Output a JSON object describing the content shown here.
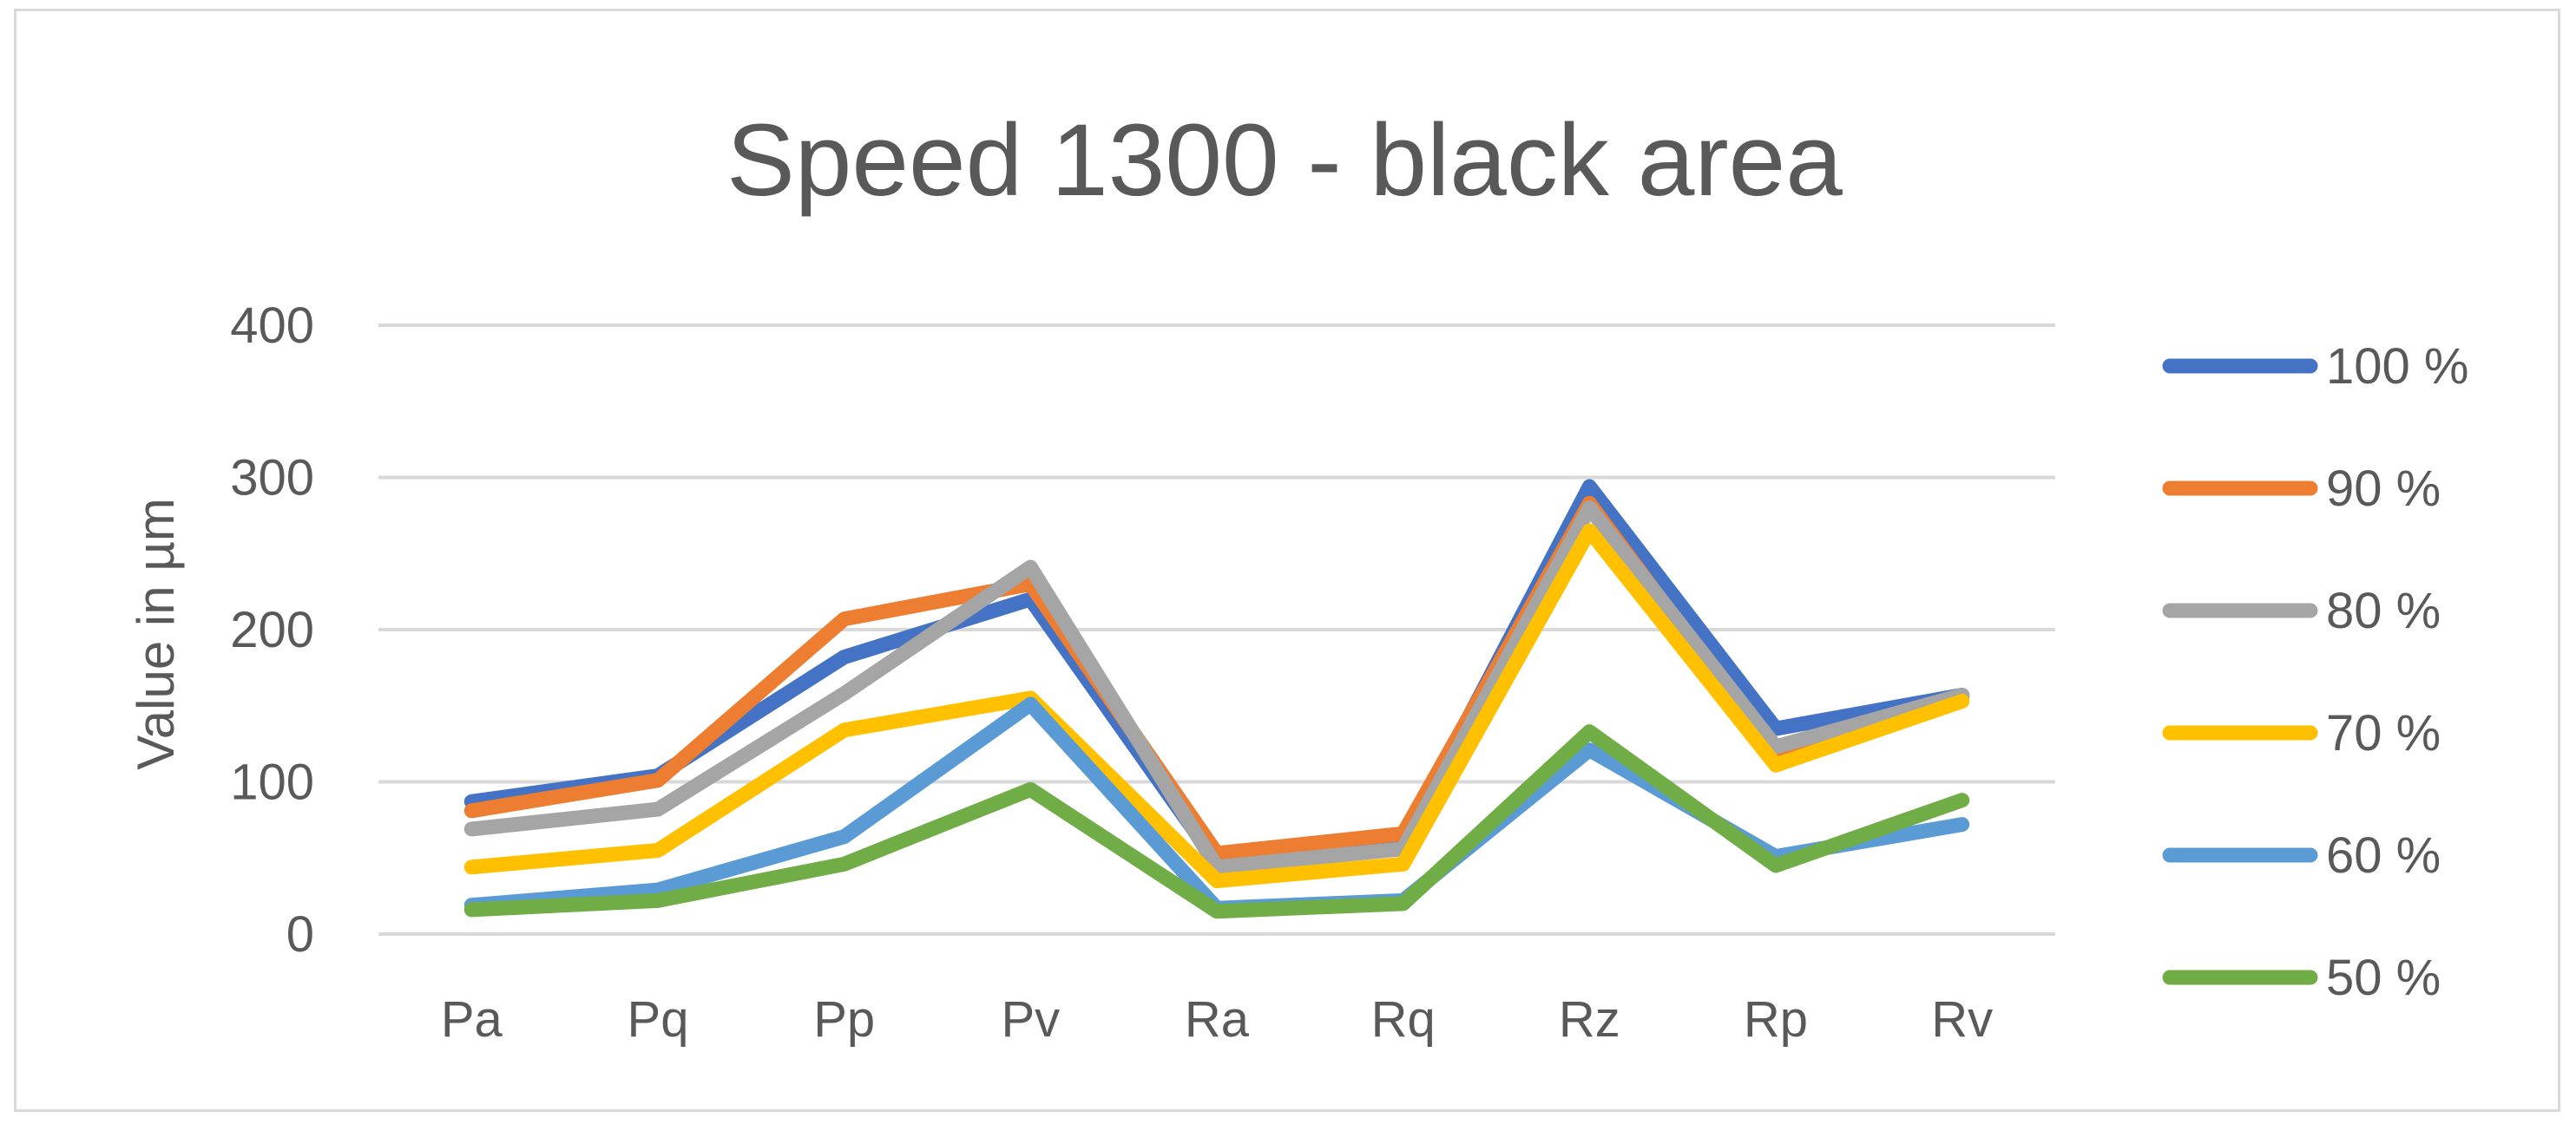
{
  "chart_data": {
    "type": "line",
    "title": "Speed 1300 - black area",
    "xlabel": "",
    "ylabel": "Value in µm",
    "ylim": [
      0,
      400
    ],
    "yticks": [
      0,
      100,
      200,
      300,
      400
    ],
    "grid": true,
    "legend_position": "right",
    "categories": [
      "Pa",
      "Pq",
      "Pp",
      "Pv",
      "Ra",
      "Rq",
      "Rz",
      "Rp",
      "Rv"
    ],
    "series": [
      {
        "name": "100 %",
        "color": "#4472c4",
        "values": [
          87,
          104,
          182,
          220,
          47,
          60,
          294,
          135,
          157
        ]
      },
      {
        "name": "90 %",
        "color": "#ed7d31",
        "values": [
          81,
          101,
          207,
          230,
          53,
          66,
          283,
          118,
          156
        ]
      },
      {
        "name": "80 %",
        "color": "#a5a5a5",
        "values": [
          69,
          82,
          158,
          241,
          44,
          56,
          280,
          123,
          157
        ]
      },
      {
        "name": "70 %",
        "color": "#ffc000",
        "values": [
          44,
          55,
          134,
          155,
          35,
          46,
          265,
          111,
          153
        ]
      },
      {
        "name": "60 %",
        "color": "#5b9bd5",
        "values": [
          19,
          29,
          64,
          151,
          17,
          22,
          121,
          51,
          72
        ]
      },
      {
        "name": "50 %",
        "color": "#70ad47",
        "values": [
          16,
          22,
          46,
          95,
          15,
          20,
          133,
          45,
          88
        ]
      }
    ]
  }
}
